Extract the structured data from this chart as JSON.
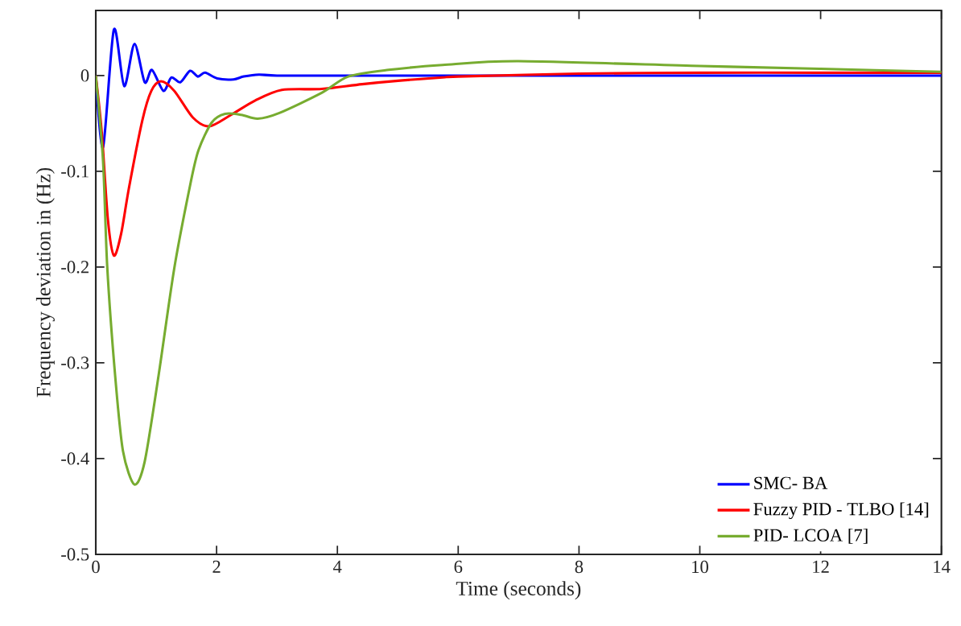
{
  "chart_data": {
    "type": "line",
    "xlabel": "Time (seconds)",
    "ylabel": "Frequency deviation in (Hz)",
    "xlim": [
      0,
      14
    ],
    "ylim": [
      -0.5,
      0.068
    ],
    "xticks": [
      0,
      2,
      4,
      6,
      8,
      10,
      12,
      14
    ],
    "yticks": [
      -0.5,
      -0.4,
      -0.3,
      -0.2,
      -0.1,
      0
    ],
    "grid": false,
    "legend": "bottom right",
    "marker": "none",
    "line_style": "solid",
    "series": [
      {
        "name": "SMC- BA",
        "color": "#0000ff",
        "x": [
          0,
          0.12,
          0.3,
          0.47,
          0.64,
          0.81,
          0.93,
          1.12,
          1.25,
          1.4,
          1.56,
          1.69,
          1.81,
          2.01,
          2.28,
          2.45,
          2.7,
          3.0,
          4.0,
          6.0,
          10.0,
          14.0
        ],
        "values": [
          0,
          -0.075,
          0.048,
          -0.011,
          0.033,
          -0.007,
          0.006,
          -0.016,
          -0.002,
          -0.007,
          0.005,
          -0.001,
          0.003,
          -0.003,
          -0.004,
          -0.001,
          0.001,
          0,
          0,
          0,
          0,
          0
        ]
      },
      {
        "name": "Fuzzy PID - TLBO [14]",
        "color": "#ff0000",
        "x": [
          0,
          0.1,
          0.2,
          0.3,
          0.42,
          0.55,
          0.77,
          0.92,
          1.08,
          1.3,
          1.61,
          1.88,
          2.24,
          2.64,
          3.08,
          3.74,
          4.41,
          5.08,
          5.74,
          6.0,
          8.0,
          10.0,
          12.0,
          14.0
        ],
        "values": [
          0,
          -0.06,
          -0.15,
          -0.188,
          -0.165,
          -0.117,
          -0.047,
          -0.016,
          -0.006,
          -0.016,
          -0.044,
          -0.053,
          -0.041,
          -0.026,
          -0.015,
          -0.014,
          -0.009,
          -0.005,
          -0.002,
          -0.001,
          0.002,
          0.003,
          0.003,
          0.003
        ]
      },
      {
        "name": "PID- LCOA [7]",
        "color": "#77ac30",
        "x": [
          0,
          0.12,
          0.19,
          0.32,
          0.45,
          0.64,
          0.81,
          1.04,
          1.3,
          1.57,
          1.7,
          1.92,
          2.14,
          2.41,
          2.68,
          3.04,
          3.74,
          4.18,
          4.85,
          5.74,
          7.0,
          10.0,
          12.0,
          14.0
        ],
        "values": [
          0,
          -0.089,
          -0.2,
          -0.313,
          -0.392,
          -0.427,
          -0.403,
          -0.313,
          -0.201,
          -0.112,
          -0.078,
          -0.049,
          -0.04,
          -0.041,
          -0.045,
          -0.039,
          -0.018,
          -0.001,
          0.006,
          0.011,
          0.015,
          0.01,
          0.007,
          0.004
        ]
      }
    ]
  }
}
